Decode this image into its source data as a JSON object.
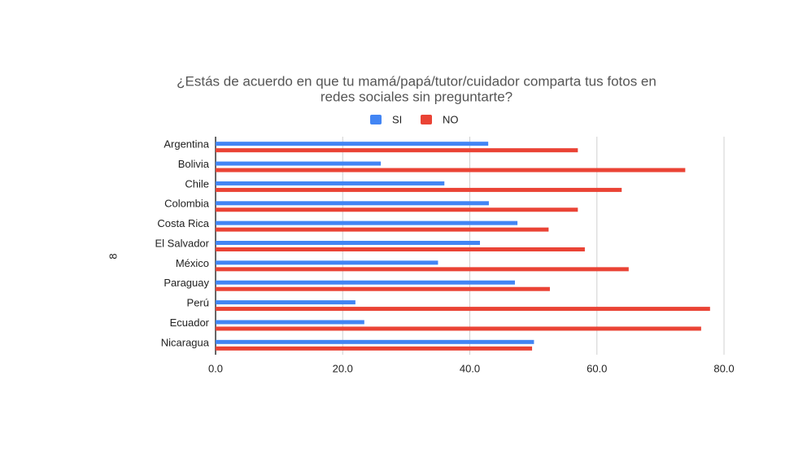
{
  "chart_data": {
    "type": "bar",
    "orientation": "horizontal",
    "title": [
      "¿Estás de acuerdo en que tu mamá/papá/tutor/cuidador comparta tus fotos en",
      "redes sociales sin preguntarte?"
    ],
    "y_label": "8",
    "categories": [
      "Argentina",
      "Bolivia",
      "Chile",
      "Colombia",
      "Costa Rica",
      "El Salvador",
      "México",
      "Paraguay",
      "Perú",
      "Ecuador",
      "Nicaragua"
    ],
    "series": [
      {
        "name": "SI",
        "color": "#4285f4",
        "values": [
          42.9,
          26.0,
          36.0,
          43.0,
          47.5,
          41.6,
          35.0,
          47.1,
          22.0,
          23.4,
          50.1
        ]
      },
      {
        "name": "NO",
        "color": "#ea4335",
        "values": [
          57.0,
          73.9,
          63.9,
          57.0,
          52.4,
          58.1,
          65.0,
          52.6,
          77.8,
          76.4,
          49.8
        ]
      }
    ],
    "xlim": [
      0,
      80
    ],
    "xticks": [
      {
        "value": 0,
        "label": "0.0"
      },
      {
        "value": 20,
        "label": "20.0"
      },
      {
        "value": 40,
        "label": "40.0"
      },
      {
        "value": 60,
        "label": "60.0"
      },
      {
        "value": 80,
        "label": "80.0"
      }
    ],
    "grid": true
  }
}
